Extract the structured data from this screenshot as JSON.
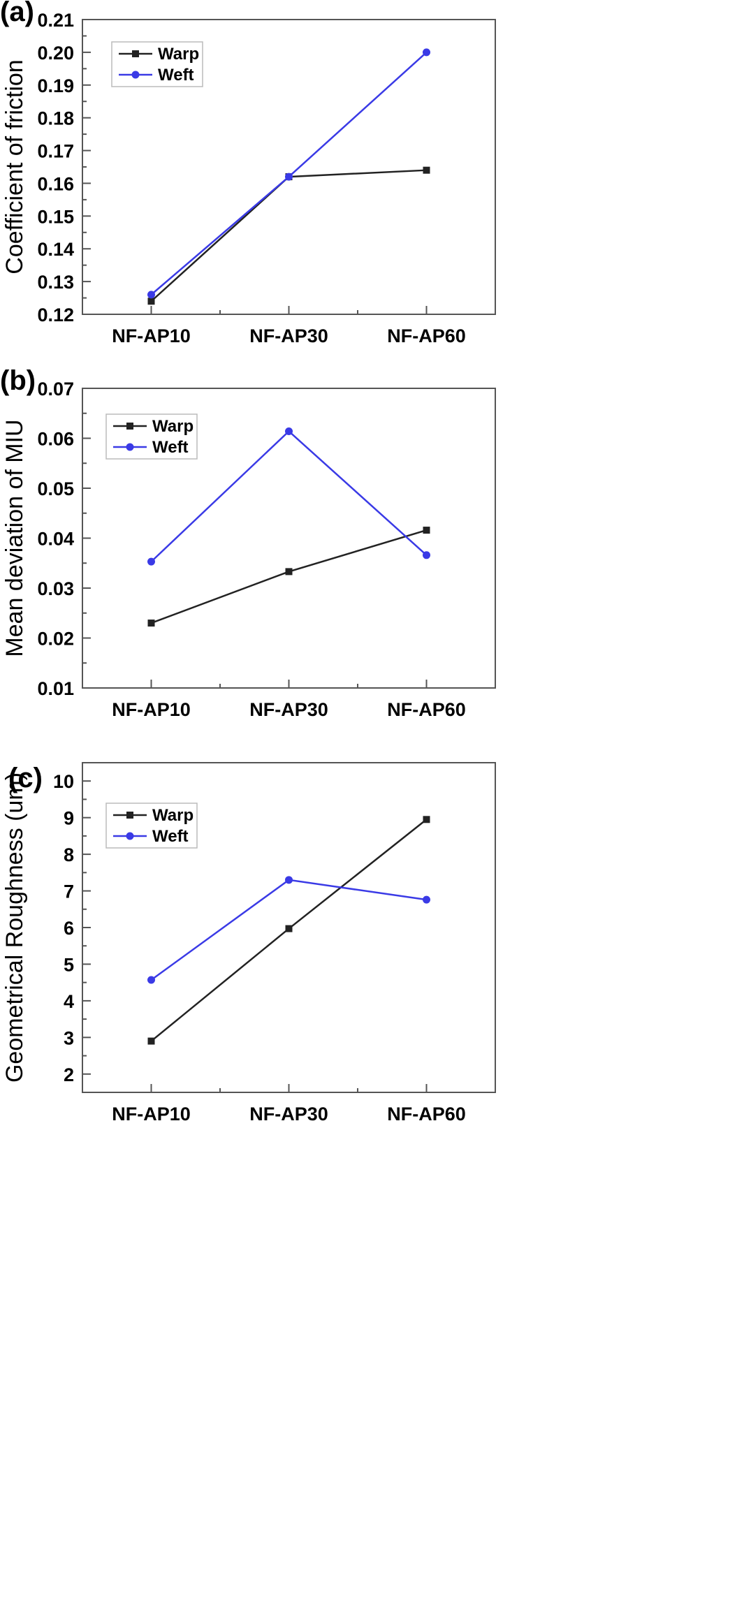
{
  "chart_data": [
    {
      "type": "line",
      "panel_label": "(a)",
      "ylabel": "Coefficient of friction",
      "categories": [
        "NF-AP10",
        "NF-AP30",
        "NF-AP60"
      ],
      "ylim": [
        0.12,
        0.21
      ],
      "yticks": [
        "0.12",
        "0.13",
        "0.14",
        "0.15",
        "0.16",
        "0.17",
        "0.18",
        "0.19",
        "0.20",
        "0.21"
      ],
      "legend_position": "top-left",
      "series": [
        {
          "name": "Warp",
          "color": "#222222",
          "marker": "square",
          "values": [
            0.124,
            0.162,
            0.164
          ]
        },
        {
          "name": "Weft",
          "color": "#3a3ae6",
          "marker": "circle",
          "values": [
            0.126,
            0.162,
            0.2
          ]
        }
      ]
    },
    {
      "type": "line",
      "panel_label": "(b)",
      "ylabel": "Mean deviation of MIU",
      "categories": [
        "NF-AP10",
        "NF-AP30",
        "NF-AP60"
      ],
      "ylim": [
        0.01,
        0.07
      ],
      "yticks": [
        "0.01",
        "0.02",
        "0.03",
        "0.04",
        "0.05",
        "0.06",
        "0.07"
      ],
      "legend_position": "top-left",
      "series": [
        {
          "name": "Warp",
          "color": "#222222",
          "marker": "square",
          "values": [
            0.023,
            0.0333,
            0.0416
          ]
        },
        {
          "name": "Weft",
          "color": "#3a3ae6",
          "marker": "circle",
          "values": [
            0.0353,
            0.0614,
            0.0366
          ]
        }
      ]
    },
    {
      "type": "line",
      "panel_label": "(c)",
      "ylabel": "Geometrical Roughness (um)",
      "categories": [
        "NF-AP10",
        "NF-AP30",
        "NF-AP60"
      ],
      "ylim": [
        1.5,
        10.5
      ],
      "yticks": [
        "2",
        "3",
        "4",
        "5",
        "6",
        "7",
        "8",
        "9",
        "10"
      ],
      "legend_position": "top-left",
      "series": [
        {
          "name": "Warp",
          "color": "#222222",
          "marker": "square",
          "values": [
            2.9,
            5.97,
            8.95
          ]
        },
        {
          "name": "Weft",
          "color": "#3a3ae6",
          "marker": "circle",
          "values": [
            4.57,
            7.3,
            6.76
          ]
        }
      ]
    }
  ]
}
